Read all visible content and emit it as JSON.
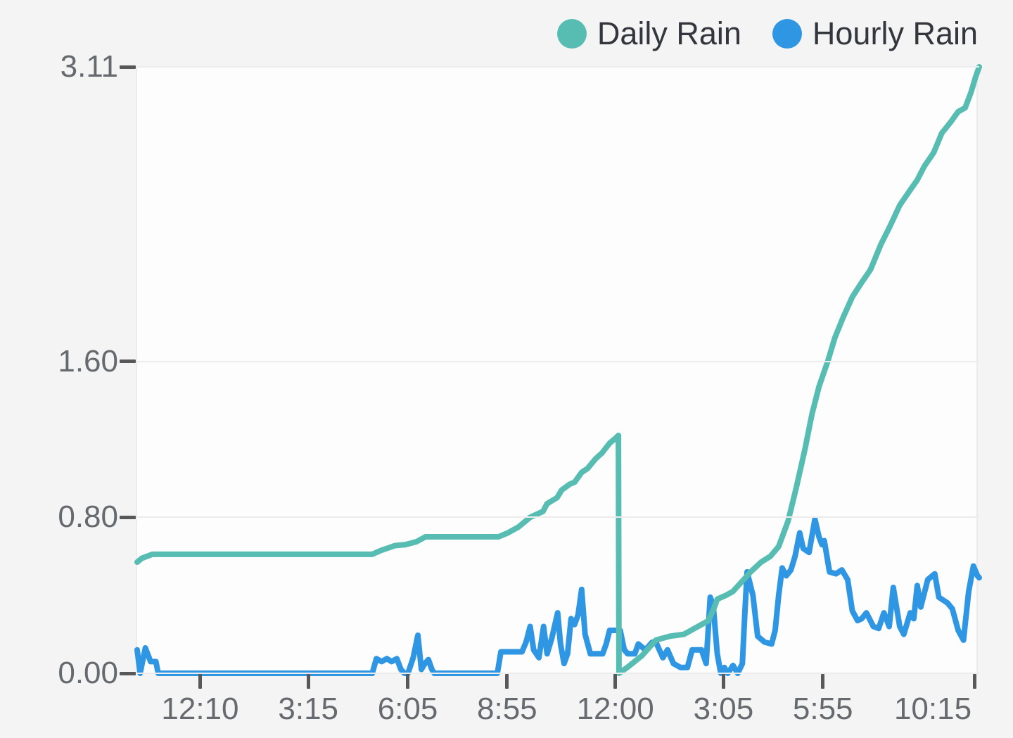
{
  "legend": {
    "items": [
      {
        "label": "Daily Rain"
      },
      {
        "label": "Hourly Rain"
      }
    ]
  },
  "colors": {
    "daily_rain": "#57bdb3",
    "hourly_rain": "#2f96e3",
    "page_background": "#f4f4f4",
    "plot_background": "#fdfdfd",
    "gridline": "#ececec",
    "tick_mark": "#58585b",
    "axis_label_text": "#666a6e",
    "legend_text": "#33363c"
  },
  "chart_data": {
    "type": "line",
    "title": "",
    "xlabel": "",
    "ylabel": "",
    "grid": "horizontal gridlines only",
    "legend_position": "top-right",
    "x_unit": "time of day (24h window, minutes)",
    "x_range": [
      0,
      1440
    ],
    "y_range": [
      0,
      3.11
    ],
    "y_ticks": [
      {
        "value": 0.0,
        "label": "0.00"
      },
      {
        "value": 0.8,
        "label": "0.80"
      },
      {
        "value": 1.6,
        "label": "1.60"
      },
      {
        "value": 3.11,
        "label": "3.11"
      }
    ],
    "x_ticks": [
      {
        "minute": 110,
        "label": "12:10"
      },
      {
        "minute": 295,
        "label": "3:15"
      },
      {
        "minute": 465,
        "label": "6:05"
      },
      {
        "minute": 635,
        "label": "8:55"
      },
      {
        "minute": 820,
        "label": "12:00"
      },
      {
        "minute": 1005,
        "label": "3:05"
      },
      {
        "minute": 1175,
        "label": "5:55"
      },
      {
        "minute": 1435,
        "label": "10:15"
      }
    ],
    "series": [
      {
        "name": "Daily Rain",
        "color": "#57bdb3",
        "stroke_width": 8,
        "points": [
          [
            0,
            0.57
          ],
          [
            8,
            0.59
          ],
          [
            26,
            0.61
          ],
          [
            402,
            0.61
          ],
          [
            417,
            0.63
          ],
          [
            441,
            0.655
          ],
          [
            459,
            0.66
          ],
          [
            478,
            0.675
          ],
          [
            493,
            0.7
          ],
          [
            618,
            0.7
          ],
          [
            634,
            0.72
          ],
          [
            652,
            0.75
          ],
          [
            672,
            0.8
          ],
          [
            694,
            0.83
          ],
          [
            701,
            0.87
          ],
          [
            718,
            0.9
          ],
          [
            726,
            0.94
          ],
          [
            740,
            0.97
          ],
          [
            748,
            0.98
          ],
          [
            760,
            1.03
          ],
          [
            770,
            1.05
          ],
          [
            784,
            1.1
          ],
          [
            795,
            1.13
          ],
          [
            808,
            1.18
          ],
          [
            816,
            1.2
          ],
          [
            823,
            1.22
          ],
          [
            824,
            0.0
          ],
          [
            838,
            0.03
          ],
          [
            863,
            0.09
          ],
          [
            887,
            0.17
          ],
          [
            911,
            0.19
          ],
          [
            935,
            0.2
          ],
          [
            959,
            0.24
          ],
          [
            977,
            0.27
          ],
          [
            986,
            0.33
          ],
          [
            992,
            0.38
          ],
          [
            1007,
            0.4
          ],
          [
            1019,
            0.42
          ],
          [
            1037,
            0.48
          ],
          [
            1049,
            0.52
          ],
          [
            1067,
            0.57
          ],
          [
            1083,
            0.6
          ],
          [
            1097,
            0.65
          ],
          [
            1113,
            0.78
          ],
          [
            1127,
            0.95
          ],
          [
            1142,
            1.15
          ],
          [
            1154,
            1.33
          ],
          [
            1166,
            1.47
          ],
          [
            1181,
            1.6
          ],
          [
            1193,
            1.72
          ],
          [
            1208,
            1.83
          ],
          [
            1223,
            1.93
          ],
          [
            1238,
            2.0
          ],
          [
            1254,
            2.07
          ],
          [
            1272,
            2.2
          ],
          [
            1287,
            2.29
          ],
          [
            1304,
            2.4
          ],
          [
            1320,
            2.47
          ],
          [
            1334,
            2.53
          ],
          [
            1346,
            2.6
          ],
          [
            1362,
            2.67
          ],
          [
            1376,
            2.77
          ],
          [
            1392,
            2.83
          ],
          [
            1404,
            2.88
          ],
          [
            1416,
            2.9
          ],
          [
            1426,
            2.98
          ],
          [
            1434,
            3.06
          ],
          [
            1440,
            3.11
          ]
        ]
      },
      {
        "name": "Hourly Rain",
        "color": "#2f96e3",
        "stroke_width": 8,
        "points": [
          [
            0,
            0.12
          ],
          [
            5,
            0.0
          ],
          [
            14,
            0.13
          ],
          [
            23,
            0.06
          ],
          [
            32,
            0.06
          ],
          [
            36,
            0.0
          ],
          [
            402,
            0.0
          ],
          [
            409,
            0.075
          ],
          [
            418,
            0.06
          ],
          [
            427,
            0.075
          ],
          [
            435,
            0.06
          ],
          [
            444,
            0.075
          ],
          [
            451,
            0.02
          ],
          [
            457,
            0.0
          ],
          [
            463,
            0.0
          ],
          [
            472,
            0.08
          ],
          [
            480,
            0.195
          ],
          [
            486,
            0.02
          ],
          [
            492,
            0.05
          ],
          [
            498,
            0.07
          ],
          [
            504,
            0.02
          ],
          [
            508,
            0.0
          ],
          [
            616,
            0.0
          ],
          [
            622,
            0.11
          ],
          [
            658,
            0.11
          ],
          [
            665,
            0.16
          ],
          [
            672,
            0.24
          ],
          [
            678,
            0.12
          ],
          [
            687,
            0.08
          ],
          [
            695,
            0.24
          ],
          [
            701,
            0.1
          ],
          [
            709,
            0.18
          ],
          [
            719,
            0.31
          ],
          [
            724,
            0.15
          ],
          [
            730,
            0.05
          ],
          [
            736,
            0.1
          ],
          [
            742,
            0.28
          ],
          [
            748,
            0.25
          ],
          [
            754,
            0.3
          ],
          [
            760,
            0.43
          ],
          [
            766,
            0.2
          ],
          [
            775,
            0.1
          ],
          [
            796,
            0.1
          ],
          [
            802,
            0.15
          ],
          [
            808,
            0.22
          ],
          [
            826,
            0.22
          ],
          [
            833,
            0.12
          ],
          [
            839,
            0.1
          ],
          [
            851,
            0.1
          ],
          [
            857,
            0.15
          ],
          [
            869,
            0.12
          ],
          [
            881,
            0.16
          ],
          [
            887,
            0.16
          ],
          [
            899,
            0.08
          ],
          [
            907,
            0.12
          ],
          [
            917,
            0.05
          ],
          [
            929,
            0.03
          ],
          [
            941,
            0.03
          ],
          [
            949,
            0.12
          ],
          [
            965,
            0.12
          ],
          [
            973,
            0.05
          ],
          [
            980,
            0.39
          ],
          [
            985,
            0.35
          ],
          [
            992,
            0.1
          ],
          [
            998,
            0.0
          ],
          [
            1004,
            0.03
          ],
          [
            1010,
            0.0
          ],
          [
            1019,
            0.04
          ],
          [
            1027,
            0.0
          ],
          [
            1035,
            0.05
          ],
          [
            1039,
            0.3
          ],
          [
            1043,
            0.52
          ],
          [
            1053,
            0.4
          ],
          [
            1061,
            0.19
          ],
          [
            1073,
            0.16
          ],
          [
            1085,
            0.15
          ],
          [
            1091,
            0.22
          ],
          [
            1097,
            0.4
          ],
          [
            1103,
            0.54
          ],
          [
            1110,
            0.5
          ],
          [
            1118,
            0.53
          ],
          [
            1125,
            0.6
          ],
          [
            1133,
            0.72
          ],
          [
            1139,
            0.64
          ],
          [
            1149,
            0.62
          ],
          [
            1159,
            0.79
          ],
          [
            1166,
            0.7
          ],
          [
            1171,
            0.66
          ],
          [
            1175,
            0.68
          ],
          [
            1184,
            0.52
          ],
          [
            1195,
            0.51
          ],
          [
            1205,
            0.53
          ],
          [
            1215,
            0.48
          ],
          [
            1223,
            0.32
          ],
          [
            1232,
            0.27
          ],
          [
            1239,
            0.28
          ],
          [
            1247,
            0.31
          ],
          [
            1259,
            0.24
          ],
          [
            1268,
            0.23
          ],
          [
            1277,
            0.31
          ],
          [
            1286,
            0.24
          ],
          [
            1293,
            0.44
          ],
          [
            1304,
            0.24
          ],
          [
            1311,
            0.2
          ],
          [
            1322,
            0.31
          ],
          [
            1328,
            0.28
          ],
          [
            1334,
            0.45
          ],
          [
            1340,
            0.34
          ],
          [
            1352,
            0.48
          ],
          [
            1364,
            0.51
          ],
          [
            1371,
            0.39
          ],
          [
            1386,
            0.36
          ],
          [
            1394,
            0.33
          ],
          [
            1404,
            0.22
          ],
          [
            1413,
            0.17
          ],
          [
            1422,
            0.42
          ],
          [
            1430,
            0.55
          ],
          [
            1437,
            0.5
          ],
          [
            1440,
            0.49
          ]
        ]
      }
    ]
  }
}
